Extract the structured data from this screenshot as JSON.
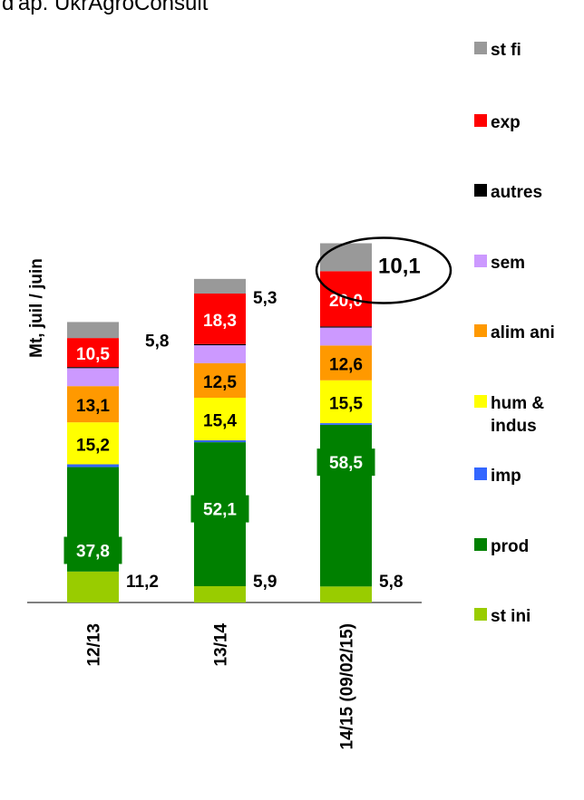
{
  "source_text": "d'ap. UkrAgroConsult",
  "chart_data": {
    "type": "bar",
    "stacked": true,
    "ylabel": "Mt, juil / juin",
    "categories": [
      "12/13",
      "13/14",
      "14/15 (09/02/15)"
    ],
    "series": [
      {
        "name": "st ini",
        "color": "#99cc00",
        "values": [
          11.2,
          5.9,
          5.8
        ],
        "labels": [
          "11,2",
          "5,9",
          "5,8"
        ]
      },
      {
        "name": "prod",
        "color": "#008000",
        "values": [
          37.8,
          52.1,
          58.5
        ],
        "labels": [
          "37,8",
          "52,1",
          "58,5"
        ]
      },
      {
        "name": "imp",
        "color": "#3366ff",
        "values": [
          1.0,
          0.7,
          0.6
        ],
        "labels": [
          "",
          "",
          ""
        ]
      },
      {
        "name": "hum & indus",
        "color": "#ffff00",
        "values": [
          15.2,
          15.4,
          15.5
        ],
        "labels": [
          "15,2",
          "15,4",
          "15,5"
        ]
      },
      {
        "name": "alim ani",
        "color": "#ff9900",
        "values": [
          13.1,
          12.5,
          12.6
        ],
        "labels": [
          "13,1",
          "12,5",
          "12,6"
        ]
      },
      {
        "name": "sem",
        "color": "#cc99ff",
        "values": [
          6.5,
          6.5,
          6.5
        ],
        "labels": [
          "",
          "",
          ""
        ]
      },
      {
        "name": "autres",
        "color": "#000000",
        "values": [
          0.4,
          0.4,
          0.4
        ],
        "labels": [
          "",
          "",
          ""
        ]
      },
      {
        "name": "exp",
        "color": "#ff0000",
        "values": [
          10.5,
          18.3,
          20.0
        ],
        "labels": [
          "10,5",
          "18,3",
          "20,0"
        ]
      },
      {
        "name": "st fi",
        "color": "#999999",
        "values": [
          5.8,
          5.3,
          10.1
        ],
        "labels": [
          "5,8",
          "5,3",
          "10,1"
        ]
      }
    ],
    "legend_position": "right",
    "highlight": {
      "category": "14/15 (09/02/15)",
      "series": "st fi",
      "style": "ellipse"
    },
    "grid": false
  }
}
